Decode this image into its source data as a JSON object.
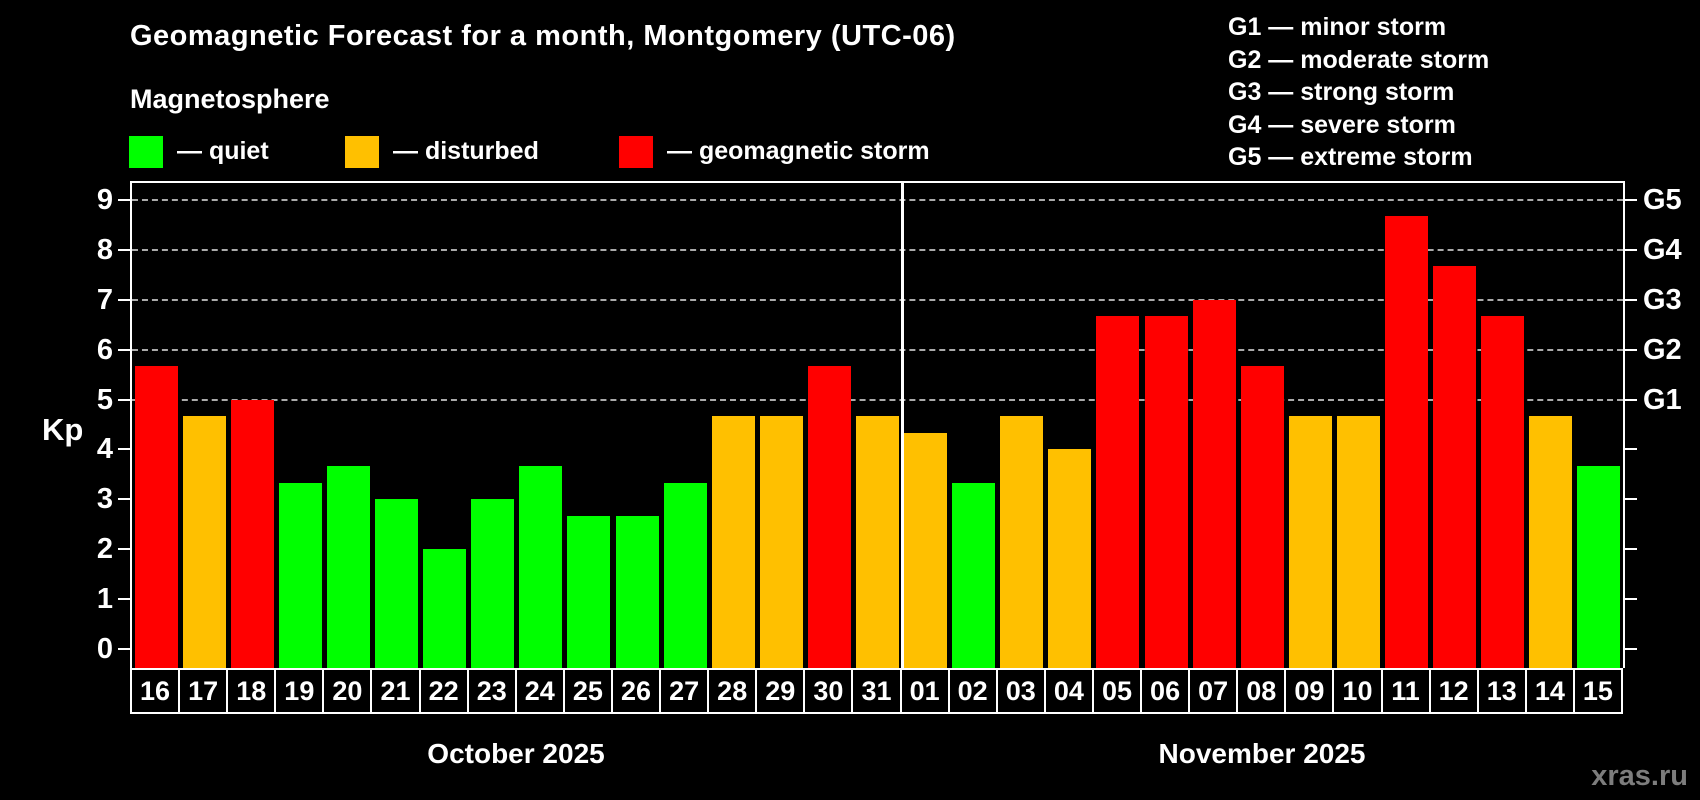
{
  "title": "Geomagnetic Forecast for a month, Montgomery (UTC-06)",
  "subtitle": "Magnetosphere",
  "colors": {
    "quiet": "#00ff00",
    "disturbed": "#ffc000",
    "storm": "#ff0000",
    "background": "#000000",
    "text": "#ffffff",
    "gridline": "#aaaaaa",
    "watermark": "#7d7d7d"
  },
  "legend": {
    "items": [
      {
        "key": "quiet",
        "label": "— quiet"
      },
      {
        "key": "disturbed",
        "label": "— disturbed"
      },
      {
        "key": "storm",
        "label": "— geomagnetic storm"
      }
    ]
  },
  "g_legend": [
    "G1 — minor storm",
    "G2 — moderate storm",
    "G3 — strong storm",
    "G4 — severe storm",
    "G5 — extreme storm"
  ],
  "chart_data": {
    "type": "bar",
    "title": "Geomagnetic Forecast for a month, Montgomery (UTC-06)",
    "ylabel": "Kp",
    "ylim": [
      0,
      9
    ],
    "yticks": [
      0,
      1,
      2,
      3,
      4,
      5,
      6,
      7,
      8,
      9
    ],
    "gridlines_at": [
      5,
      6,
      7,
      8,
      9
    ],
    "grid": true,
    "right_axis": [
      {
        "value": 5,
        "label": "G1"
      },
      {
        "value": 6,
        "label": "G2"
      },
      {
        "value": 7,
        "label": "G3"
      },
      {
        "value": 8,
        "label": "G4"
      },
      {
        "value": 9,
        "label": "G5"
      }
    ],
    "months": [
      {
        "label": "October 2025",
        "days": [
          {
            "day": "16",
            "kp": 5.67,
            "status": "storm"
          },
          {
            "day": "17",
            "kp": 4.67,
            "status": "disturbed"
          },
          {
            "day": "18",
            "kp": 5.0,
            "status": "storm"
          },
          {
            "day": "19",
            "kp": 3.33,
            "status": "quiet"
          },
          {
            "day": "20",
            "kp": 3.67,
            "status": "quiet"
          },
          {
            "day": "21",
            "kp": 3.0,
            "status": "quiet"
          },
          {
            "day": "22",
            "kp": 2.0,
            "status": "quiet"
          },
          {
            "day": "23",
            "kp": 3.0,
            "status": "quiet"
          },
          {
            "day": "24",
            "kp": 3.67,
            "status": "quiet"
          },
          {
            "day": "25",
            "kp": 2.67,
            "status": "quiet"
          },
          {
            "day": "26",
            "kp": 2.67,
            "status": "quiet"
          },
          {
            "day": "27",
            "kp": 3.33,
            "status": "quiet"
          },
          {
            "day": "28",
            "kp": 4.67,
            "status": "disturbed"
          },
          {
            "day": "29",
            "kp": 4.67,
            "status": "disturbed"
          },
          {
            "day": "30",
            "kp": 5.67,
            "status": "storm"
          },
          {
            "day": "31",
            "kp": 4.67,
            "status": "disturbed"
          }
        ]
      },
      {
        "label": "November 2025",
        "days": [
          {
            "day": "01",
            "kp": 4.33,
            "status": "disturbed"
          },
          {
            "day": "02",
            "kp": 3.33,
            "status": "quiet"
          },
          {
            "day": "03",
            "kp": 4.67,
            "status": "disturbed"
          },
          {
            "day": "04",
            "kp": 4.0,
            "status": "disturbed"
          },
          {
            "day": "05",
            "kp": 6.67,
            "status": "storm"
          },
          {
            "day": "06",
            "kp": 6.67,
            "status": "storm"
          },
          {
            "day": "07",
            "kp": 7.0,
            "status": "storm"
          },
          {
            "day": "08",
            "kp": 5.67,
            "status": "storm"
          },
          {
            "day": "09",
            "kp": 4.67,
            "status": "disturbed"
          },
          {
            "day": "10",
            "kp": 4.67,
            "status": "disturbed"
          },
          {
            "day": "11",
            "kp": 8.67,
            "status": "storm"
          },
          {
            "day": "12",
            "kp": 7.67,
            "status": "storm"
          },
          {
            "day": "13",
            "kp": 6.67,
            "status": "storm"
          },
          {
            "day": "14",
            "kp": 4.67,
            "status": "disturbed"
          },
          {
            "day": "15",
            "kp": 3.67,
            "status": "quiet"
          }
        ]
      }
    ]
  },
  "watermark": "xras.ru"
}
